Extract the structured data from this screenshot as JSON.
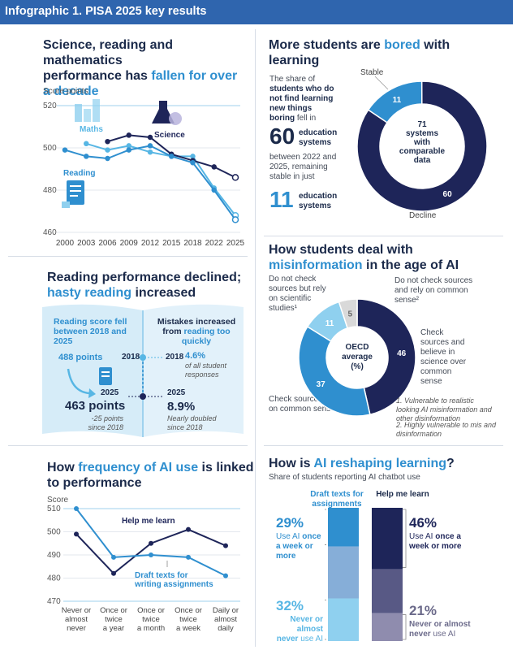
{
  "banner": {
    "title": "Infographic 1. PISA 2025 key results"
  },
  "colors": {
    "navy": "#1e2559",
    "blue": "#2f8fcf",
    "light_blue": "#8fd0ef",
    "sky": "#57b6e4",
    "grey": "#d9d9d9"
  },
  "panel1": {
    "title_parts": [
      "Science, reading and mathematics",
      "performance has ",
      "fallen for over",
      "a decade"
    ],
    "axis_unit": "Score points",
    "labels": {
      "maths": "Maths",
      "science": "Science",
      "reading": "Reading"
    },
    "chart_data": {
      "type": "line",
      "x": [
        "2000",
        "2003",
        "2006",
        "2009",
        "2012",
        "2015",
        "2018",
        "2022",
        "2025"
      ],
      "ylim": [
        460,
        520
      ],
      "yticks": [
        "460",
        "480",
        "500",
        "520"
      ],
      "series": [
        {
          "name": "Maths",
          "values": [
            null,
            502,
            499,
            501,
            498,
            496,
            496,
            481,
            468
          ]
        },
        {
          "name": "Science",
          "values": [
            null,
            null,
            503,
            506,
            505,
            497,
            494,
            491,
            486
          ]
        },
        {
          "name": "Reading",
          "values": [
            499,
            496,
            495,
            499,
            501,
            496,
            493,
            480,
            466
          ]
        }
      ]
    }
  },
  "panel2": {
    "title_parts": [
      "More students are ",
      "bored",
      " with",
      "learning"
    ],
    "left_text": {
      "line1": "The share of",
      "bold": "students who do not find learning new things boring",
      "line3": "fell in"
    },
    "big1": {
      "value": "60",
      "label1": "education",
      "label2": "systems"
    },
    "mid_text": "between 2022 and 2025, remaining stable in just",
    "big2": {
      "value": "11",
      "label1": "education",
      "label2": "systems"
    },
    "donut": {
      "center": [
        "71",
        "systems",
        "with",
        "comparable",
        "data"
      ],
      "stable_label": "Stable",
      "decline_label": "Decline",
      "chart_data": {
        "type": "pie",
        "categories": [
          "Stable",
          "Decline"
        ],
        "values": [
          11,
          60
        ]
      }
    }
  },
  "panel3": {
    "title_parts": [
      "Reading performance declined;",
      "hasty reading",
      " increased"
    ],
    "left_head": "Reading score fell between 2018 and 2025",
    "right_head_1": "Mistakes increased from ",
    "right_head_2": "reading too quickly",
    "left_2018_value": "488 points",
    "year_2018": "2018",
    "year_2025": "2025",
    "left_2025_value": "463 points",
    "left_2025_note": "-25 points since 2018",
    "right_2018_value": "4.6%",
    "right_2018_note": "of all student responses",
    "right_2025_value": "8.9%",
    "right_2025_note": "Nearly doubled since 2018"
  },
  "panel4": {
    "title_parts": [
      "How students deal with",
      "misinformation",
      " in the age of AI"
    ],
    "center": [
      "OECD",
      "average",
      "(%)"
    ],
    "labels": {
      "no_check_science": "Do not check sources but rely on scientific studies¹",
      "no_check_common": "Do not check sources and rely on common sense²",
      "check_science": "Check sources and believe in science over common sense",
      "check_common": "Check sources but rely on common sense¹"
    },
    "notes": [
      "1. Vulnerable to realistic looking AI misinformation and other disinformation",
      "2. Highly vulnerable to mis and disinformation"
    ],
    "chart_data": {
      "type": "pie",
      "categories": [
        "Check sources and believe in science over common sense",
        "Check sources but rely on common sense",
        "Do not check sources but rely on scientific studies",
        "Do not check sources and rely on common sense"
      ],
      "values": [
        46,
        37,
        11,
        5
      ]
    }
  },
  "panel5": {
    "title_parts": [
      "How ",
      "frequency of AI use",
      " is linked",
      "to performance"
    ],
    "axis_unit": "Score",
    "label_help": "Help me learn",
    "label_draft": "Draft texts for writing assignments",
    "chart_data": {
      "type": "line",
      "x": [
        "Never or almost never",
        "Once or twice a year",
        "Once or twice a month",
        "Once or twice a week",
        "Daily or almost daily"
      ],
      "ylim": [
        470,
        510
      ],
      "yticks": [
        "470",
        "480",
        "490",
        "500",
        "510"
      ],
      "series": [
        {
          "name": "Help me learn",
          "values": [
            499,
            482,
            495,
            501,
            494
          ]
        },
        {
          "name": "Draft texts for writing assignments",
          "values": [
            510,
            489,
            490,
            489,
            481
          ]
        }
      ]
    }
  },
  "panel6": {
    "title_parts": [
      "How is ",
      "AI reshaping learning",
      "?"
    ],
    "subtitle": "Share of students reporting AI chatbot use",
    "draft_head": "Draft texts for assignments",
    "help_head": "Help me learn",
    "draft_top_pct": "29%",
    "draft_top_text_1": "Use AI ",
    "draft_top_text_2": "once a week or more",
    "draft_bottom_pct": "32%",
    "draft_bottom_text_1": "Never or almost never",
    "draft_bottom_text_2": " use AI",
    "help_top_pct": "46%",
    "help_top_text_1": "Use AI ",
    "help_top_text_2": "once a week or more",
    "help_bottom_pct": "21%",
    "help_bottom_text_1": "Never or almost never",
    "help_bottom_text_2": " use AI",
    "chart_data": {
      "type": "bar",
      "categories": [
        "Draft texts for assignments",
        "Help me learn"
      ],
      "series": [
        {
          "name": "once a week or more",
          "values": [
            29,
            46
          ]
        },
        {
          "name": "Never or almost never",
          "values": [
            32,
            21
          ]
        }
      ]
    }
  }
}
